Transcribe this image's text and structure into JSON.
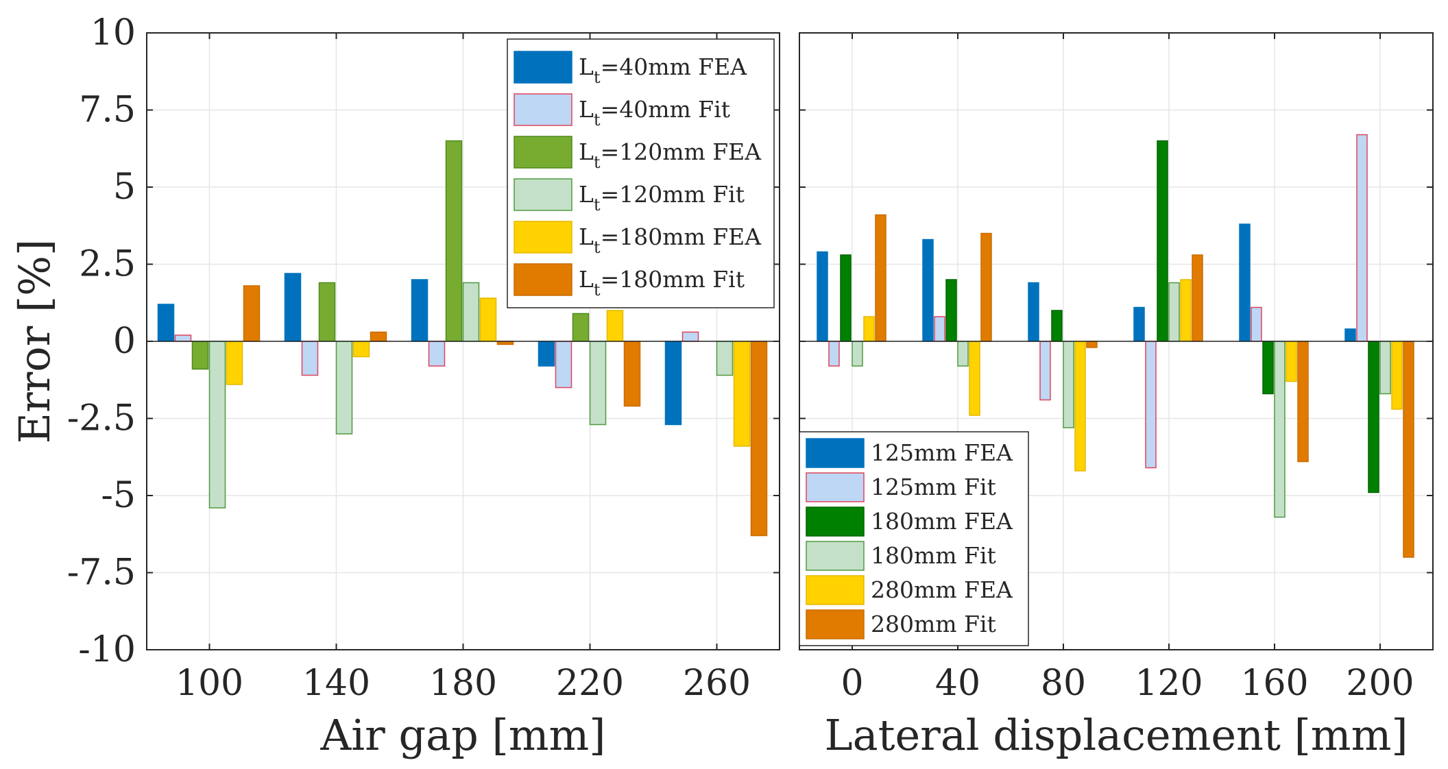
{
  "chart_data": [
    {
      "type": "bar",
      "xlabel": "Air gap [mm]",
      "ylabel": "Error [%]",
      "ylim": [
        -10,
        10
      ],
      "yticks": [
        "10",
        "7.5",
        "5",
        "2.5",
        "0",
        "-2.5",
        "-5",
        "-7.5",
        "-10"
      ],
      "categories": [
        "100",
        "140",
        "180",
        "220",
        "260"
      ],
      "grid": true,
      "legend_position": "top-right",
      "series": [
        {
          "name": "40mm FEA",
          "legend_main": "L",
          "legend_sub": "t",
          "legend_rest": "=40mm FEA",
          "face": "#0072BD",
          "edge": "#0072BD",
          "values": [
            1.2,
            2.2,
            2.0,
            -0.8,
            -2.7
          ]
        },
        {
          "name": "40mm Fit",
          "legend_main": "L",
          "legend_sub": "t",
          "legend_rest": "=40mm Fit",
          "face": "#BDD7F5",
          "edge": "#E0445A",
          "values": [
            0.2,
            -1.1,
            -0.8,
            -1.5,
            0.3
          ]
        },
        {
          "name": "120mm FEA",
          "legend_main": "L",
          "legend_sub": "t",
          "legend_rest": "=120mm FEA",
          "face": "#77AC30",
          "edge": "#4E8A1E",
          "values": [
            -0.9,
            1.9,
            6.5,
            0.9,
            0.0
          ]
        },
        {
          "name": "120mm Fit",
          "legend_main": "L",
          "legend_sub": "t",
          "legend_rest": "=120mm Fit",
          "face": "#C5E0C9",
          "edge": "#4E9A3E",
          "values": [
            -5.4,
            -3.0,
            1.9,
            -2.7,
            -1.1
          ]
        },
        {
          "name": "180mm FEA",
          "legend_main": "L",
          "legend_sub": "t",
          "legend_rest": "=180mm FEA",
          "face": "#FFD200",
          "edge": "#E6B800",
          "values": [
            -1.4,
            -0.5,
            1.4,
            1.0,
            -3.4
          ]
        },
        {
          "name": "180mm Fit",
          "legend_main": "L",
          "legend_sub": "t",
          "legend_rest": "=180mm Fit",
          "face": "#E07B00",
          "edge": "#C96C00",
          "values": [
            1.8,
            0.3,
            -0.1,
            -2.1,
            -6.3
          ]
        }
      ]
    },
    {
      "type": "bar",
      "xlabel": "Lateral displacement [mm]",
      "ylabel": "",
      "ylim": [
        -10,
        10
      ],
      "categories": [
        "0",
        "40",
        "80",
        "120",
        "160",
        "200"
      ],
      "grid": true,
      "legend_position": "bottom-left",
      "series": [
        {
          "name": "125mm FEA",
          "legend_main": "125mm FEA",
          "face": "#0072BD",
          "edge": "#0072BD",
          "values": [
            2.9,
            3.3,
            1.9,
            1.1,
            3.8,
            0.4
          ]
        },
        {
          "name": "125mm Fit",
          "legend_main": "125mm Fit",
          "face": "#BDD7F5",
          "edge": "#E0445A",
          "values": [
            -0.8,
            0.8,
            -1.9,
            -4.1,
            1.1,
            6.7
          ]
        },
        {
          "name": "180mm FEA",
          "legend_main": "180mm FEA",
          "face": "#008000",
          "edge": "#006400",
          "values": [
            2.8,
            2.0,
            1.0,
            6.5,
            -1.7,
            -4.9
          ]
        },
        {
          "name": "180mm Fit",
          "legend_main": "180mm Fit",
          "face": "#C5E0C9",
          "edge": "#4E9A3E",
          "values": [
            -0.8,
            -0.8,
            -2.8,
            1.9,
            -5.7,
            -1.7
          ]
        },
        {
          "name": "280mm FEA",
          "legend_main": "280mm FEA",
          "face": "#FFD200",
          "edge": "#E6B800",
          "values": [
            0.8,
            -2.4,
            -4.2,
            2.0,
            -1.3,
            -2.2
          ]
        },
        {
          "name": "280mm Fit",
          "legend_main": "280mm Fit",
          "face": "#E07B00",
          "edge": "#C96C00",
          "values": [
            4.1,
            3.5,
            -0.2,
            2.8,
            -3.9,
            -7.0
          ]
        }
      ]
    }
  ]
}
